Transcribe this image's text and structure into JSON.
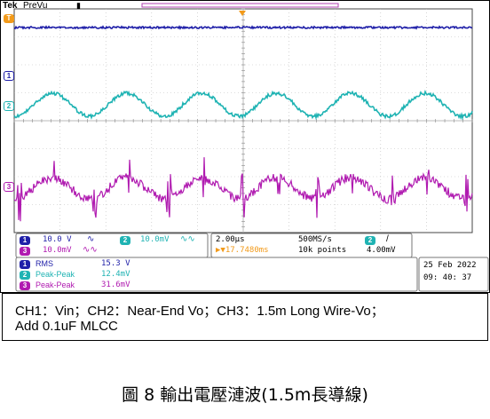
{
  "header": {
    "brand": "Tek",
    "mode": "PreVu"
  },
  "markers": {
    "ch1": "1",
    "ch2": "2",
    "ch3": "3",
    "trigger": "T"
  },
  "settings": {
    "ch1_scale": "10.0 V",
    "ch2_scale": "10.0mV",
    "ch3_scale": "10.0mV",
    "timebase": "2.00µs",
    "sample_rate": "500MS/s",
    "trigger_channel": "2",
    "trigger_slope": "/",
    "trigger_position": "▶▼17.7480ms",
    "record_length": "10k points",
    "trigger_level": "4.00mV"
  },
  "measurements": [
    {
      "channel": "1",
      "name": "RMS",
      "value": "15.3 V"
    },
    {
      "channel": "2",
      "name": "Peak-Peak",
      "value": "12.4mV"
    },
    {
      "channel": "3",
      "name": "Peak-Peak",
      "value": "31.6mV"
    }
  ],
  "datetime": {
    "date": "25 Feb  2022",
    "time": "09: 40: 37"
  },
  "caption_box": {
    "line1": "CH1：Vin；CH2：Near-End Vo；CH3：1.5m Long Wire-Vo；",
    "line2": "Add 0.1uF MLCC"
  },
  "figure_caption": "圖 8 輸出電壓漣波(1.5m長導線)",
  "colors": {
    "ch1": "#1f1fa8",
    "ch2": "#1fb3b3",
    "ch3": "#b01ab0",
    "trigger": "#f29a1a"
  }
}
